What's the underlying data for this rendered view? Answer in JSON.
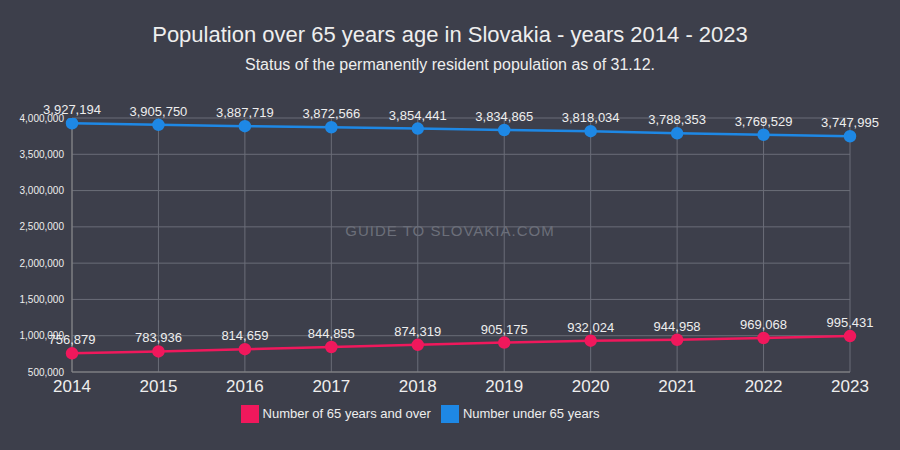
{
  "chart_data": {
    "type": "line",
    "title": "Population over 65 years age in Slovakia - years 2014 - 2023",
    "subtitle": "Status of the permanently resident population as of 31.12.",
    "annotation": "GUIDE TO SLOVAKIA.COM",
    "categories": [
      "2014",
      "2015",
      "2016",
      "2017",
      "2018",
      "2019",
      "2020",
      "2021",
      "2022",
      "2023"
    ],
    "series": [
      {
        "name": "Number under 65 years",
        "color": "#1e88e5",
        "values": [
          3927194,
          3905750,
          3887719,
          3872566,
          3854441,
          3834865,
          3818034,
          3788353,
          3769529,
          3747995
        ],
        "value_labels": [
          "3,927,194",
          "3,905,750",
          "3,887,719",
          "3,872,566",
          "3,854,441",
          "3,834,865",
          "3,818,034",
          "3,788,353",
          "3,769,529",
          "3,747,995"
        ]
      },
      {
        "name": "Number of 65 years and over",
        "color": "#f0185c",
        "values": [
          756879,
          783936,
          814659,
          844855,
          874319,
          905175,
          932024,
          944958,
          969068,
          995431
        ],
        "value_labels": [
          "756,879",
          "783,936",
          "814,659",
          "844,855",
          "874,319",
          "905,175",
          "932,024",
          "944,958",
          "969,068",
          "995,431"
        ]
      }
    ],
    "ylim": [
      500000,
      4000000
    ],
    "yticks": [
      {
        "value": 500000,
        "label": "500,000"
      },
      {
        "value": 1000000,
        "label": "1,000,000"
      },
      {
        "value": 1500000,
        "label": "1,500,000"
      },
      {
        "value": 2000000,
        "label": "2,000,000"
      },
      {
        "value": 2500000,
        "label": "2,500,000"
      },
      {
        "value": 3000000,
        "label": "3,000,000"
      },
      {
        "value": 3500000,
        "label": "3,500,000"
      },
      {
        "value": 4000000,
        "label": "4,000,000"
      }
    ],
    "grid": true,
    "legend": "bottom",
    "data_labels": true,
    "marker": "circle"
  }
}
